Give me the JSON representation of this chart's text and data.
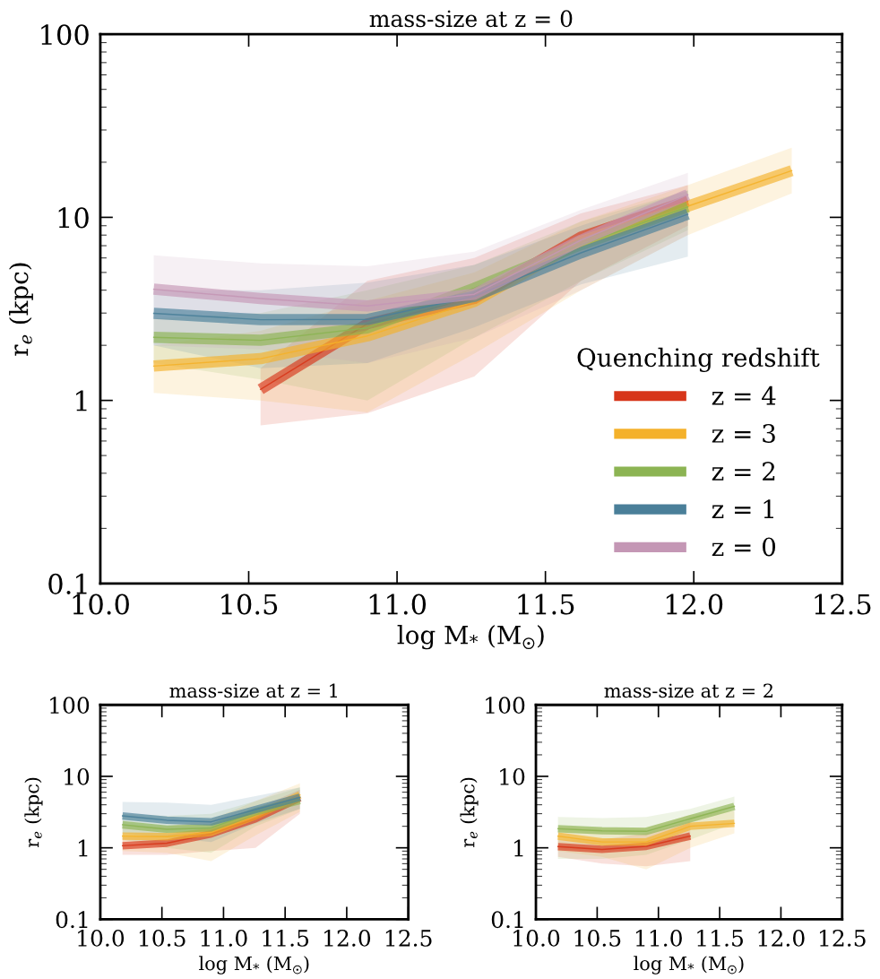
{
  "chart_data": [
    {
      "type": "line",
      "title": "mass-size at z = 0",
      "xlabel": "log M$_{*}$ (M$_{☉}$)",
      "ylabel": "r$_{e}$ (kpc)",
      "log": "y",
      "xlim": [
        10.0,
        12.5
      ],
      "xticks": [
        {
          "value": 10.0,
          "label": "10.0"
        },
        {
          "value": 10.5,
          "label": "10.5"
        },
        {
          "value": 11.0,
          "label": "11.0"
        },
        {
          "value": 11.5,
          "label": "11.5"
        },
        {
          "value": 12.0,
          "label": "12.0"
        },
        {
          "value": 12.5,
          "label": "12.5"
        }
      ],
      "ylim": [
        0.1,
        100
      ],
      "yticks": [
        {
          "value": 0.1,
          "label": "0.1"
        },
        {
          "value": 1,
          "label": "1"
        },
        {
          "value": 10,
          "label": "10"
        },
        {
          "value": 100,
          "label": "100"
        }
      ],
      "grid": false,
      "legend": "lower right",
      "legend_title": "Quenching redshift",
      "marker": "none",
      "line_style": "solid",
      "series": [
        {
          "name": "z = 4",
          "color": "#d7361a",
          "x": [
            10.54,
            10.9,
            11.26,
            11.62,
            11.98
          ],
          "values": [
            1.15,
            2.62,
            3.6,
            7.8,
            12.3
          ],
          "lower": [
            0.73,
            0.85,
            1.35,
            4.5,
            9
          ],
          "upper": [
            1.5,
            4.5,
            6,
            10.5,
            15
          ]
        },
        {
          "name": "z = 3",
          "color": "#f4b12a",
          "x": [
            10.18,
            10.54,
            10.9,
            11.26,
            11.62,
            11.98,
            12.33
          ],
          "values": [
            1.54,
            1.69,
            2.25,
            3.47,
            7.4,
            11.5,
            18.0
          ],
          "lower": [
            1.1,
            1.0,
            0.86,
            1.8,
            4,
            8,
            13.5
          ],
          "upper": [
            2.0,
            2.4,
            3.5,
            5,
            9.5,
            15,
            24
          ]
        },
        {
          "name": "z = 2",
          "color": "#8cb453",
          "x": [
            10.18,
            10.54,
            10.9,
            11.26,
            11.62,
            11.98
          ],
          "values": [
            2.21,
            2.13,
            2.49,
            4.1,
            7.1,
            11.4
          ],
          "lower": [
            1.6,
            1.3,
            1.0,
            2.2,
            4.5,
            8.5
          ],
          "upper": [
            2.8,
            3.0,
            4.0,
            5.5,
            9.5,
            14
          ]
        },
        {
          "name": "z = 1",
          "color": "#4a7f99",
          "x": [
            10.18,
            10.54,
            10.9,
            11.26,
            11.62,
            11.98
          ],
          "values": [
            2.99,
            2.76,
            2.77,
            3.7,
            6.4,
            10.4
          ],
          "lower": [
            2.0,
            1.5,
            1.6,
            2.5,
            4.3,
            6.1
          ],
          "upper": [
            4.0,
            4.0,
            4.4,
            5.5,
            9,
            14
          ]
        },
        {
          "name": "z = 0",
          "color": "#c497b5",
          "x": [
            10.18,
            10.54,
            10.9,
            11.26,
            11.62,
            11.98
          ],
          "values": [
            4.05,
            3.6,
            3.28,
            3.8,
            7.5,
            13.3
          ],
          "lower": [
            2.0,
            1.9,
            1.6,
            2.2,
            4.0,
            8
          ],
          "upper": [
            6.2,
            5.6,
            5.4,
            6.5,
            11,
            17.5
          ]
        }
      ]
    },
    {
      "type": "line",
      "title": "mass-size at z = 1",
      "xlabel": "log M$_{*}$ (M$_{☉}$)",
      "ylabel": "r$_{e}$ (kpc)",
      "log": "y",
      "xlim": [
        10.0,
        12.5
      ],
      "xticks": [
        {
          "value": 10.0,
          "label": "10.0"
        },
        {
          "value": 10.5,
          "label": "10.5"
        },
        {
          "value": 11.0,
          "label": "11.0"
        },
        {
          "value": 11.5,
          "label": "11.5"
        },
        {
          "value": 12.0,
          "label": "12.0"
        },
        {
          "value": 12.5,
          "label": "12.5"
        }
      ],
      "ylim": [
        0.1,
        100
      ],
      "yticks": [
        {
          "value": 0.1,
          "label": "0.1"
        },
        {
          "value": 1,
          "label": "1"
        },
        {
          "value": 10,
          "label": "10"
        },
        {
          "value": 100,
          "label": "100"
        }
      ],
      "grid": false,
      "marker": "none",
      "line_style": "solid",
      "series": [
        {
          "color": "#d7361a",
          "x": [
            10.18,
            10.54,
            10.9,
            11.26,
            11.62
          ],
          "values": [
            1.07,
            1.16,
            1.57,
            2.55,
            5.0
          ],
          "lower": [
            0.8,
            0.8,
            0.9,
            1.0,
            3.0
          ],
          "upper": [
            1.4,
            1.5,
            2.0,
            3.5,
            6.5
          ]
        },
        {
          "color": "#f4b12a",
          "x": [
            10.18,
            10.54,
            10.9,
            11.26,
            11.62
          ],
          "values": [
            1.46,
            1.43,
            1.65,
            2.8,
            5.5
          ],
          "lower": [
            0.9,
            0.85,
            0.65,
            1.5,
            3.2
          ],
          "upper": [
            2.0,
            2.0,
            2.5,
            4.5,
            8.0
          ]
        },
        {
          "color": "#8cb453",
          "x": [
            10.18,
            10.54,
            10.9,
            11.26,
            11.62
          ],
          "values": [
            2.1,
            1.82,
            1.9,
            3.2,
            4.6
          ],
          "lower": [
            1.3,
            1.0,
            0.85,
            2.0,
            3.5
          ],
          "upper": [
            3.0,
            2.8,
            3.0,
            4.5,
            7.0
          ]
        },
        {
          "color": "#4a7f99",
          "x": [
            10.18,
            10.54,
            10.9,
            11.26,
            11.62
          ],
          "values": [
            2.8,
            2.43,
            2.31,
            3.43,
            5.1
          ],
          "lower": [
            1.6,
            1.4,
            1.2,
            2.2,
            3.5
          ],
          "upper": [
            4.4,
            4.3,
            4.0,
            5.3,
            7.0
          ]
        }
      ]
    },
    {
      "type": "line",
      "title": "mass-size at z = 2",
      "xlabel": "log M$_{*}$ (M$_{☉}$)",
      "ylabel": "r$_{e}$ (kpc)",
      "log": "y",
      "xlim": [
        10.0,
        12.5
      ],
      "xticks": [
        {
          "value": 10.0,
          "label": "10.0"
        },
        {
          "value": 10.5,
          "label": "10.5"
        },
        {
          "value": 11.0,
          "label": "11.0"
        },
        {
          "value": 11.5,
          "label": "11.5"
        },
        {
          "value": 12.0,
          "label": "12.0"
        },
        {
          "value": 12.5,
          "label": "12.5"
        }
      ],
      "ylim": [
        0.1,
        100
      ],
      "yticks": [
        {
          "value": 0.1,
          "label": "0.1"
        },
        {
          "value": 1,
          "label": "1"
        },
        {
          "value": 10,
          "label": "10"
        },
        {
          "value": 100,
          "label": "100"
        }
      ],
      "grid": false,
      "marker": "none",
      "line_style": "solid",
      "series": [
        {
          "color": "#d7361a",
          "x": [
            10.18,
            10.54,
            10.9,
            11.26
          ],
          "values": [
            1.04,
            0.95,
            1.05,
            1.46
          ],
          "lower": [
            0.75,
            0.6,
            0.55,
            0.65
          ],
          "upper": [
            1.3,
            1.3,
            1.6,
            2.4
          ]
        },
        {
          "color": "#f4b12a",
          "x": [
            10.18,
            10.54,
            10.9,
            11.26,
            11.62
          ],
          "values": [
            1.46,
            1.21,
            1.21,
            2.0,
            2.2
          ],
          "lower": [
            0.9,
            0.75,
            0.5,
            1.0,
            1.6
          ],
          "upper": [
            2.0,
            1.9,
            1.9,
            2.9,
            3.3
          ]
        },
        {
          "color": "#8cb453",
          "x": [
            10.18,
            10.54,
            10.9,
            11.26,
            11.62
          ],
          "values": [
            1.85,
            1.73,
            1.7,
            2.55,
            3.8
          ],
          "lower": [
            0.7,
            0.7,
            0.8,
            1.3,
            2.2
          ],
          "upper": [
            2.7,
            2.6,
            2.7,
            3.5,
            5.2
          ]
        }
      ]
    }
  ]
}
